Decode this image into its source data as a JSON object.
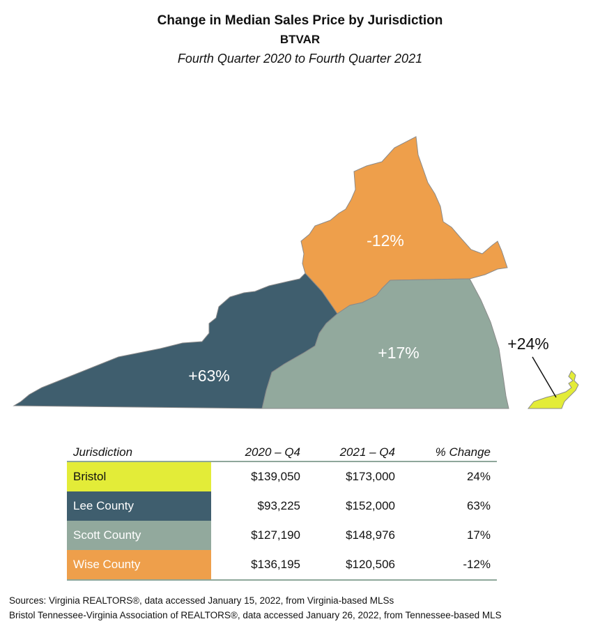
{
  "header": {
    "title": "Change in Median Sales Price by Jurisdiction",
    "subtitle": "BTVAR",
    "period": "Fourth Quarter 2020 to Fourth Quarter 2021"
  },
  "map": {
    "regions": [
      {
        "name": "Wise County",
        "change_label": "-12%",
        "color": "#ee9f4b"
      },
      {
        "name": "Lee County",
        "change_label": "+63%",
        "color": "#3f5e6e"
      },
      {
        "name": "Scott County",
        "change_label": "+17%",
        "color": "#92a99d"
      },
      {
        "name": "Bristol",
        "change_label": "+24%",
        "color": "#e3ec38"
      }
    ],
    "border_color": "#8a8a8a"
  },
  "table": {
    "headers": [
      "Jurisdiction",
      "2020 – Q4",
      "2021 – Q4",
      "% Change"
    ],
    "rows": [
      {
        "name": "Bristol",
        "q4_2020": "$139,050",
        "q4_2021": "$173,000",
        "change": "24%",
        "color": "#e3ec38",
        "dark": false
      },
      {
        "name": "Lee County",
        "q4_2020": "$93,225",
        "q4_2021": "$152,000",
        "change": "63%",
        "color": "#3f5e6e",
        "dark": true
      },
      {
        "name": "Scott County",
        "q4_2020": "$127,190",
        "q4_2021": "$148,976",
        "change": "17%",
        "color": "#92a99d",
        "dark": true
      },
      {
        "name": "Wise County",
        "q4_2020": "$136,195",
        "q4_2021": "$120,506",
        "change": "-12%",
        "color": "#ee9f4b",
        "dark": true
      }
    ],
    "rule_color": "#8ea79a"
  },
  "sources": {
    "line1": "Sources: Virginia REALTORS®, data accessed January 15, 2022, from Virginia-based MLSs",
    "line2": "Bristol Tennessee-Virginia Association of REALTORS®, data accessed January 26, 2022, from Tennessee-based MLS"
  }
}
